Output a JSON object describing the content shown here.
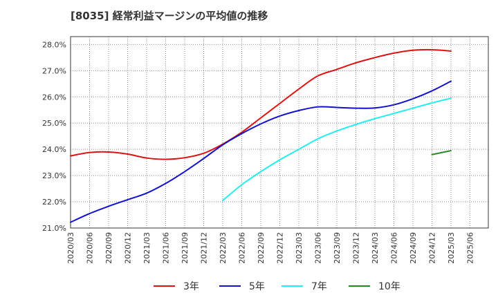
{
  "chart_data": {
    "type": "line",
    "title": "[8035]  経常利益マージンの平均値の推移",
    "xlabel": "",
    "ylabel": "",
    "ylim": [
      21.0,
      28.3
    ],
    "y_ticks": [
      "21.0%",
      "22.0%",
      "23.0%",
      "24.0%",
      "25.0%",
      "26.0%",
      "27.0%",
      "28.0%"
    ],
    "y_tick_values": [
      21.0,
      22.0,
      23.0,
      24.0,
      25.0,
      26.0,
      27.0,
      28.0
    ],
    "x_ticks": [
      "2020/03",
      "2020/06",
      "2020/09",
      "2020/12",
      "2021/03",
      "2021/06",
      "2021/09",
      "2021/12",
      "2022/03",
      "2022/06",
      "2022/09",
      "2022/12",
      "2023/03",
      "2023/06",
      "2023/09",
      "2023/12",
      "2024/03",
      "2024/06",
      "2024/09",
      "2024/12",
      "2025/03",
      "2025/06"
    ],
    "grid": true,
    "legend_position": "bottom",
    "series": [
      {
        "name": "3年",
        "color": "#dd1111",
        "x": [
          "2020/03",
          "2020/06",
          "2020/09",
          "2020/12",
          "2021/03",
          "2021/06",
          "2021/09",
          "2021/12",
          "2022/03",
          "2022/06",
          "2022/09",
          "2022/12",
          "2023/03",
          "2023/06",
          "2023/09",
          "2023/12",
          "2024/03",
          "2024/06",
          "2024/09",
          "2024/12",
          "2025/03"
        ],
        "values": [
          23.75,
          23.88,
          23.9,
          23.82,
          23.67,
          23.62,
          23.68,
          23.85,
          24.2,
          24.65,
          25.2,
          25.75,
          26.3,
          26.8,
          27.05,
          27.3,
          27.5,
          27.67,
          27.78,
          27.8,
          27.75
        ]
      },
      {
        "name": "5年",
        "color": "#1111cc",
        "x": [
          "2020/03",
          "2020/06",
          "2020/09",
          "2020/12",
          "2021/03",
          "2021/06",
          "2021/09",
          "2021/12",
          "2022/03",
          "2022/06",
          "2022/09",
          "2022/12",
          "2023/03",
          "2023/06",
          "2023/09",
          "2023/12",
          "2024/03",
          "2024/06",
          "2024/09",
          "2024/12",
          "2025/03"
        ],
        "values": [
          21.22,
          21.55,
          21.83,
          22.08,
          22.33,
          22.7,
          23.15,
          23.65,
          24.17,
          24.6,
          24.97,
          25.27,
          25.48,
          25.62,
          25.6,
          25.57,
          25.58,
          25.7,
          25.93,
          26.23,
          26.6
        ]
      },
      {
        "name": "7年",
        "color": "#22eeee",
        "x": [
          "2022/03",
          "2022/06",
          "2022/09",
          "2022/12",
          "2023/03",
          "2023/06",
          "2023/09",
          "2023/12",
          "2024/03",
          "2024/06",
          "2024/09",
          "2024/12",
          "2025/03"
        ],
        "values": [
          22.05,
          22.65,
          23.15,
          23.6,
          24.0,
          24.4,
          24.7,
          24.95,
          25.17,
          25.37,
          25.57,
          25.77,
          25.95
        ]
      },
      {
        "name": "10年",
        "color": "#228822",
        "x": [
          "2024/12",
          "2025/03"
        ],
        "values": [
          23.8,
          23.95
        ]
      }
    ]
  }
}
